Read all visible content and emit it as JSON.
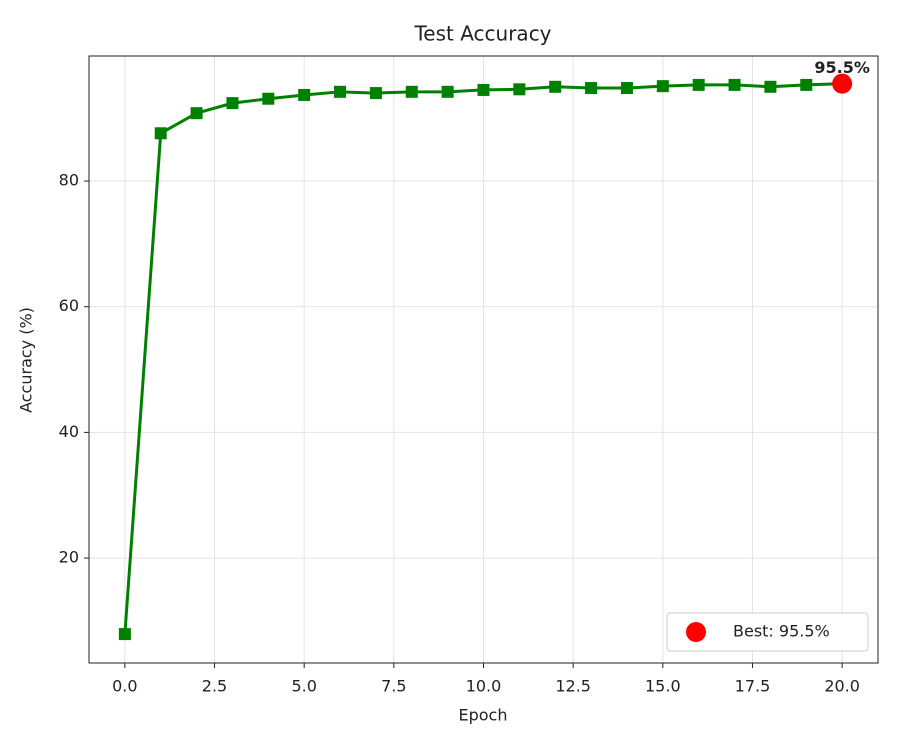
{
  "chart_data": {
    "type": "line",
    "title": "Test Accuracy",
    "xlabel": "Epoch",
    "ylabel": "Accuracy (%)",
    "x": [
      0,
      1,
      2,
      3,
      4,
      5,
      6,
      7,
      8,
      9,
      10,
      11,
      12,
      13,
      14,
      15,
      16,
      17,
      18,
      19,
      20
    ],
    "series": [
      {
        "color": "green",
        "marker": "square",
        "values": [
          7.9,
          87.6,
          90.8,
          92.4,
          93.1,
          93.7,
          94.2,
          94.0,
          94.2,
          94.2,
          94.5,
          94.6,
          95.0,
          94.8,
          94.8,
          95.1,
          95.3,
          95.3,
          95.0,
          95.3,
          95.5
        ]
      },
      {
        "name": "Best: 95.5%",
        "color": "red",
        "marker": "circle",
        "x": [
          20
        ],
        "values": [
          95.5
        ],
        "value_labels": [
          "95.5%"
        ]
      }
    ],
    "xlim": [
      -1,
      21
    ],
    "ylim": [
      3.3,
      99.9
    ],
    "xticks": [
      {
        "value": 0,
        "label": "0.0"
      },
      {
        "value": 2.5,
        "label": "2.5"
      },
      {
        "value": 5,
        "label": "5.0"
      },
      {
        "value": 7.5,
        "label": "7.5"
      },
      {
        "value": 10,
        "label": "10.0"
      },
      {
        "value": 12.5,
        "label": "12.5"
      },
      {
        "value": 15,
        "label": "15.0"
      },
      {
        "value": 17.5,
        "label": "17.5"
      },
      {
        "value": 20,
        "label": "20.0"
      }
    ],
    "yticks": [
      20,
      40,
      60,
      80
    ],
    "grid": true,
    "legend": "lower right"
  }
}
